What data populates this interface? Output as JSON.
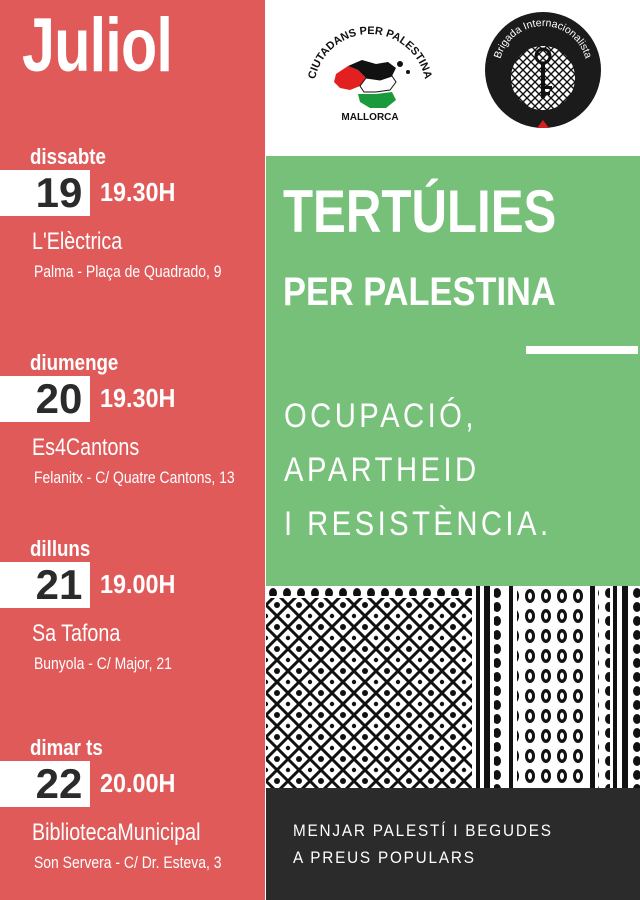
{
  "month": "Juliol",
  "events": [
    {
      "day": "dissabte",
      "date": "19",
      "time": "19.30H",
      "venue": "L'Elèctrica",
      "address": "Palma - Plaça de Quadrado, 9"
    },
    {
      "day": "diumenge",
      "date": "20",
      "time": "19.30H",
      "venue": "Es4Cantons",
      "address": "Felanitx - C/ Quatre Cantons, 13"
    },
    {
      "day": "dilluns",
      "date": "21",
      "time": "19.00H",
      "venue": "Sa Tafona",
      "address": "Bunyola - C/ Major, 21"
    },
    {
      "day": "dimar ts",
      "date": "22",
      "time": "20.00H",
      "venue": "BibliotecaMunicipal",
      "address": "Son Servera - C/ Dr. Esteva, 3"
    }
  ],
  "logos": {
    "left_text_top": "CIUTADANS PER PALESTINA",
    "left_text_bottom": "MALLORCA",
    "right_text": "Brigada Internacionalista"
  },
  "title": {
    "line1": "TERTÚLIES",
    "line2": "PER PALESTINA"
  },
  "theme": [
    "OCUPACIÓ,",
    "APARTHEID",
    "I RESISTÈNCIA."
  ],
  "food": [
    "MENJAR PALESTÍ I BEGUDES",
    "A PREUS POPULARS"
  ],
  "colors": {
    "red": "#e05a5a",
    "green": "#77c07a",
    "dark": "#2b2b2b",
    "white": "#ffffff"
  }
}
